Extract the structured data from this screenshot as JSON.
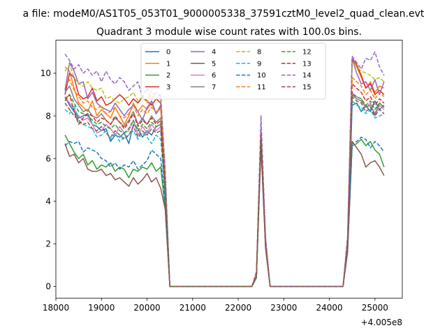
{
  "chart_data": {
    "type": "line",
    "suptitle": "a file: modeM0/AS1T05_053T01_9000005338_37591cztM0_level2_quad_clean.evt",
    "title": "Quadrant 3 module wise count rates with 100.0s bins.",
    "xlabel": "",
    "ylabel": "",
    "offset_text": "+4.005e8",
    "xlim": [
      18000,
      25600
    ],
    "ylim": [
      -0.55,
      11.55
    ],
    "xticks": [
      18000,
      19000,
      20000,
      21000,
      22000,
      23000,
      24000,
      25000
    ],
    "yticks": [
      0,
      2,
      4,
      6,
      8,
      10
    ],
    "grid": false,
    "legend": {
      "position": "top-center",
      "columns": 4
    },
    "x_segments": [
      {
        "start": 18200,
        "end": 20400,
        "step": 100
      },
      {
        "start": 20500,
        "end": 22200,
        "step": 100
      },
      {
        "start": 22300,
        "end": 22700,
        "step": 100
      },
      {
        "start": 22800,
        "end": 24200,
        "step": 100
      },
      {
        "start": 24300,
        "end": 25200,
        "step": 100
      }
    ],
    "series": [
      {
        "name": "0",
        "color": "#1f77b4",
        "dash": "solid",
        "seg1": [
          8.9,
          8.5,
          8.2,
          7.9,
          8.0,
          8.1,
          7.6,
          7.5,
          7.3,
          7.4,
          6.8,
          7.1,
          7.0,
          7.2,
          6.7,
          7.6,
          7.4,
          7.0,
          7.3,
          7.1,
          7.5,
          7.6,
          4.3
        ],
        "seg3": [
          0.0,
          0.5,
          7.0,
          2.0,
          0.0
        ],
        "seg5": [
          0.0,
          1.9,
          8.5,
          8.6,
          8.2,
          8.5,
          8.2,
          8.7,
          8.3,
          8.5,
          7.4
        ]
      },
      {
        "name": "1",
        "color": "#ff7f0e",
        "dash": "solid",
        "seg1": [
          10.3,
          10.1,
          9.3,
          8.6,
          8.4,
          8.2,
          8.7,
          8.0,
          8.3,
          8.1,
          7.9,
          8.4,
          8.0,
          7.6,
          8.0,
          8.6,
          8.2,
          8.5,
          8.3,
          8.6,
          8.1,
          8.4,
          4.9
        ],
        "seg3": [
          0.0,
          0.6,
          7.1,
          2.1,
          0.0
        ],
        "seg5": [
          0.0,
          2.1,
          10.6,
          10.3,
          9.8,
          9.3,
          9.6,
          9.1,
          9.4,
          9.3,
          8.6
        ]
      },
      {
        "name": "2",
        "color": "#2ca02c",
        "dash": "solid",
        "seg1": [
          7.1,
          6.7,
          6.3,
          6.0,
          6.2,
          5.7,
          5.9,
          5.5,
          5.7,
          5.6,
          5.8,
          5.4,
          5.6,
          5.5,
          5.1,
          5.5,
          5.4,
          5.6,
          5.5,
          5.8,
          5.4,
          5.6,
          3.6
        ],
        "seg3": [
          0.0,
          0.4,
          6.9,
          1.8,
          0.0
        ],
        "seg5": [
          0.0,
          1.7,
          6.6,
          6.7,
          6.9,
          6.6,
          6.8,
          6.4,
          6.2,
          5.6,
          5.4
        ]
      },
      {
        "name": "3",
        "color": "#d62728",
        "dash": "solid",
        "seg1": [
          9.0,
          10.0,
          9.8,
          9.0,
          8.8,
          8.9,
          9.3,
          8.7,
          8.9,
          8.5,
          8.6,
          8.8,
          9.0,
          8.8,
          8.5,
          8.8,
          8.6,
          8.9,
          8.7,
          8.5,
          8.8,
          8.6,
          5.2
        ],
        "seg3": [
          0.0,
          0.6,
          7.2,
          2.2,
          0.0
        ],
        "seg5": [
          0.0,
          2.2,
          10.7,
          10.4,
          9.9,
          9.3,
          9.5,
          9.0,
          9.2,
          9.0,
          7.0
        ]
      },
      {
        "name": "4",
        "color": "#9467bd",
        "dash": "solid",
        "seg1": [
          9.2,
          10.5,
          10.1,
          9.5,
          9.6,
          8.8,
          9.1,
          8.6,
          8.4,
          8.3,
          8.2,
          8.6,
          8.3,
          8.0,
          8.3,
          8.5,
          8.2,
          7.8,
          8.4,
          8.7,
          8.1,
          8.5,
          4.8
        ],
        "seg3": [
          0.0,
          0.5,
          7.1,
          2.0,
          0.0
        ],
        "seg5": [
          0.0,
          2.0,
          10.7,
          10.0,
          9.5,
          9.6,
          9.2,
          9.7,
          9.0,
          9.6,
          8.1
        ]
      },
      {
        "name": "5",
        "color": "#8c564b",
        "dash": "solid",
        "seg1": [
          6.7,
          6.1,
          6.2,
          5.8,
          6.0,
          5.5,
          5.4,
          5.4,
          5.5,
          5.2,
          5.3,
          5.0,
          5.1,
          4.9,
          4.7,
          5.1,
          4.8,
          5.0,
          5.3,
          4.9,
          5.1,
          4.6,
          3.6
        ],
        "seg3": [
          0.0,
          0.4,
          6.5,
          1.8,
          0.0
        ],
        "seg5": [
          0.0,
          1.6,
          6.8,
          6.5,
          6.2,
          5.6,
          5.8,
          5.9,
          5.6,
          5.2,
          4.5
        ]
      },
      {
        "name": "6",
        "color": "#e377c2",
        "dash": "solid",
        "seg1": [
          8.9,
          8.6,
          8.3,
          8.0,
          7.8,
          7.9,
          7.6,
          7.2,
          7.3,
          7.6,
          7.4,
          7.1,
          7.5,
          7.2,
          7.3,
          7.8,
          7.1,
          7.5,
          7.2,
          7.6,
          7.3,
          7.5,
          4.5
        ],
        "seg3": [
          0.0,
          0.5,
          6.8,
          1.9,
          0.0
        ],
        "seg5": [
          0.0,
          1.9,
          9.1,
          8.9,
          8.8,
          8.4,
          8.6,
          8.0,
          8.5,
          8.3,
          7.7
        ]
      },
      {
        "name": "7",
        "color": "#7f7f7f",
        "dash": "solid",
        "seg1": [
          9.1,
          9.4,
          8.8,
          8.5,
          8.2,
          8.3,
          8.0,
          7.9,
          8.1,
          7.8,
          7.6,
          7.9,
          7.7,
          7.5,
          7.8,
          8.2,
          7.6,
          7.9,
          7.6,
          8.0,
          7.7,
          7.9,
          4.6
        ],
        "seg3": [
          0.0,
          0.5,
          7.0,
          2.0,
          0.0
        ],
        "seg5": [
          0.0,
          2.0,
          9.0,
          8.8,
          8.7,
          8.4,
          8.5,
          8.1,
          8.6,
          8.4,
          7.8
        ]
      },
      {
        "name": "8",
        "color": "#bcbd22",
        "dash": "dashed",
        "seg1": [
          10.1,
          10.4,
          9.8,
          9.5,
          9.4,
          9.6,
          9.3,
          9.2,
          9.3,
          8.8,
          8.9,
          8.7,
          8.6,
          8.8,
          8.9,
          9.1,
          8.7,
          8.9,
          8.6,
          9.2,
          8.8,
          9.0,
          5.3
        ],
        "seg3": [
          0.0,
          0.6,
          7.4,
          2.2,
          0.0
        ],
        "seg5": [
          0.0,
          2.3,
          10.5,
          10.3,
          10.1,
          10.0,
          9.9,
          9.7,
          9.8,
          9.6,
          8.4
        ]
      },
      {
        "name": "9",
        "color": "#17becf",
        "dash": "dashed",
        "seg1": [
          8.3,
          8.1,
          8.5,
          7.7,
          7.6,
          7.5,
          7.4,
          7.0,
          7.1,
          7.3,
          6.9,
          7.2,
          6.8,
          7.0,
          7.1,
          7.3,
          6.9,
          7.2,
          7.0,
          6.7,
          7.1,
          6.9,
          4.2
        ],
        "seg3": [
          0.0,
          0.4,
          7.6,
          2.0,
          0.0
        ],
        "seg5": [
          0.0,
          2.0,
          8.7,
          8.5,
          8.4,
          8.1,
          8.3,
          7.9,
          8.0,
          8.1,
          7.4
        ]
      },
      {
        "name": "10",
        "color": "#1f77b4",
        "dash": "dashed",
        "seg1": [
          6.6,
          6.8,
          6.7,
          6.8,
          6.3,
          6.5,
          6.4,
          6.3,
          6.0,
          5.9,
          5.6,
          5.8,
          5.5,
          5.7,
          5.6,
          5.9,
          5.5,
          5.7,
          5.9,
          6.4,
          6.2,
          6.0,
          3.9
        ],
        "seg3": [
          0.0,
          0.5,
          6.8,
          1.9,
          0.0
        ],
        "seg5": [
          0.0,
          1.8,
          6.7,
          6.8,
          7.0,
          6.9,
          6.5,
          6.8,
          6.6,
          6.3,
          5.5
        ]
      },
      {
        "name": "11",
        "color": "#ff7f0e",
        "dash": "dashed",
        "seg1": [
          9.4,
          9.7,
          9.2,
          8.9,
          8.6,
          8.7,
          8.4,
          8.3,
          8.5,
          8.1,
          8.2,
          8.4,
          8.0,
          7.9,
          8.1,
          8.5,
          8.0,
          8.3,
          8.1,
          8.4,
          8.2,
          8.3,
          4.9
        ],
        "seg3": [
          0.0,
          0.6,
          7.3,
          2.1,
          0.0
        ],
        "seg5": [
          0.0,
          2.1,
          9.8,
          9.6,
          9.4,
          9.0,
          9.2,
          8.8,
          9.1,
          8.9,
          8.2
        ]
      },
      {
        "name": "12",
        "color": "#2ca02c",
        "dash": "dashed",
        "seg1": [
          8.8,
          9.0,
          8.6,
          8.2,
          8.1,
          8.0,
          7.8,
          7.6,
          7.7,
          7.5,
          7.4,
          7.6,
          7.3,
          7.2,
          7.4,
          7.8,
          7.3,
          7.6,
          7.4,
          7.7,
          7.5,
          7.6,
          4.5
        ],
        "seg3": [
          0.0,
          0.5,
          7.0,
          2.0,
          0.0
        ],
        "seg5": [
          0.0,
          2.0,
          9.0,
          8.9,
          8.8,
          8.5,
          8.7,
          8.3,
          8.6,
          8.4,
          7.6
        ]
      },
      {
        "name": "13",
        "color": "#d62728",
        "dash": "dashed",
        "seg1": [
          8.7,
          9.0,
          8.2,
          7.6,
          7.9,
          8.1,
          8.0,
          7.7,
          7.9,
          7.8,
          7.6,
          8.0,
          7.7,
          7.4,
          7.7,
          8.1,
          7.5,
          7.8,
          7.6,
          7.9,
          7.6,
          7.8,
          4.7
        ],
        "seg3": [
          0.0,
          0.5,
          7.2,
          2.0,
          0.0
        ],
        "seg5": [
          0.0,
          2.1,
          9.5,
          9.3,
          9.1,
          8.7,
          8.9,
          8.5,
          8.8,
          8.6,
          7.9
        ]
      },
      {
        "name": "14",
        "color": "#9467bd",
        "dash": "dashed",
        "seg1": [
          10.9,
          10.6,
          10.2,
          10.4,
          10.0,
          10.2,
          9.9,
          10.1,
          9.6,
          10.1,
          9.7,
          9.5,
          9.8,
          9.6,
          9.2,
          9.4,
          9.6,
          8.9,
          9.3,
          8.8,
          9.1,
          8.9,
          5.4
        ],
        "seg3": [
          0.0,
          0.7,
          8.0,
          2.3,
          0.0
        ],
        "seg5": [
          0.0,
          2.4,
          10.8,
          10.5,
          10.2,
          10.7,
          10.6,
          11.0,
          10.3,
          9.9,
          8.8
        ]
      },
      {
        "name": "15",
        "color": "#8c564b",
        "dash": "dashed",
        "seg1": [
          8.6,
          8.3,
          8.0,
          7.8,
          7.6,
          7.7,
          7.4,
          7.3,
          7.5,
          7.2,
          7.0,
          7.3,
          7.1,
          6.9,
          7.1,
          7.5,
          7.0,
          7.3,
          7.1,
          7.4,
          7.2,
          7.3,
          4.4
        ],
        "seg3": [
          0.0,
          0.5,
          6.9,
          1.9,
          0.0
        ],
        "seg5": [
          0.0,
          1.9,
          8.9,
          8.7,
          8.6,
          8.2,
          8.4,
          8.0,
          8.3,
          8.1,
          7.5
        ]
      }
    ]
  }
}
